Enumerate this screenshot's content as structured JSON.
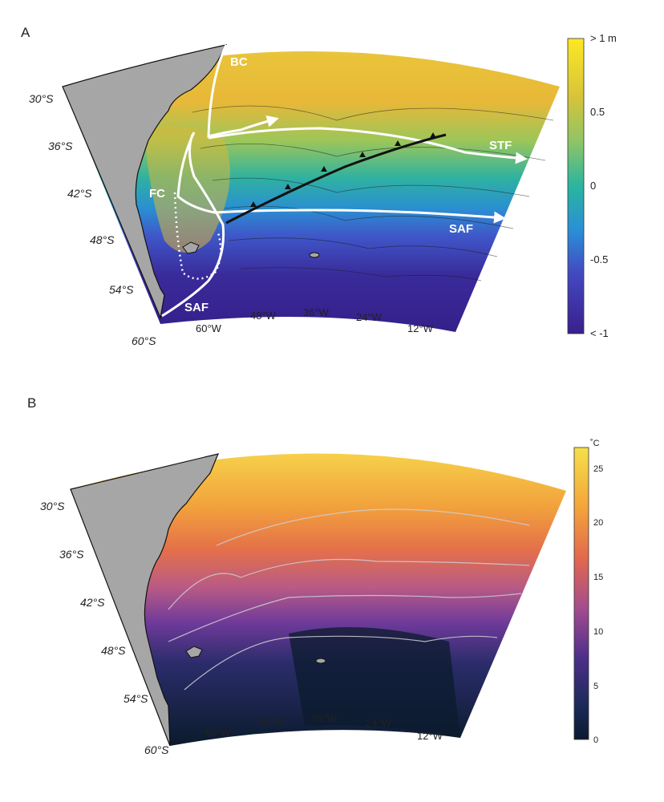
{
  "panel_a": {
    "letter": "A",
    "lat_labels": [
      "30°S",
      "36°S",
      "42°S",
      "48°S",
      "54°S",
      "60°S"
    ],
    "lon_labels": [
      "60°W",
      "48°W",
      "36°W",
      "24°W",
      "12°W"
    ],
    "front_labels": [
      "BC",
      "STF",
      "FC",
      "SAF",
      "SAF"
    ],
    "colorbar": {
      "ticks": [
        "> 1 m",
        "0.5",
        "0",
        "-0.5",
        "< -1"
      ],
      "range": [
        -1,
        1
      ],
      "colormap": [
        "#fde725",
        "#c9c83a",
        "#8ec466",
        "#2ab5a0",
        "#2a9bd0",
        "#3a6fd8",
        "#4340b8",
        "#3a1f8c"
      ]
    }
  },
  "panel_b": {
    "letter": "B",
    "lat_labels": [
      "30°S",
      "36°S",
      "42°S",
      "48°S",
      "54°S",
      "60°S"
    ],
    "lon_labels": [
      "60°W",
      "48°W",
      "36°W",
      "24°W",
      "12°W"
    ],
    "colorbar": {
      "unit": "˚C",
      "ticks": [
        "25",
        "20",
        "15",
        "10",
        "5",
        "0"
      ],
      "range": [
        0,
        27
      ],
      "colormap": [
        "#f5e04a",
        "#f6b43a",
        "#ee7d3a",
        "#c85a7a",
        "#8a3f9a",
        "#4d2f8a",
        "#1c2a5a",
        "#0a1a2e"
      ]
    }
  }
}
